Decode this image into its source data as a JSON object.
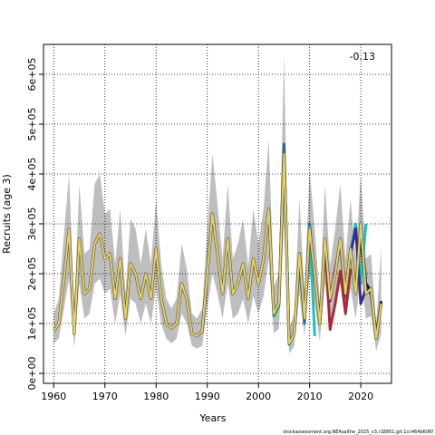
{
  "chart_data": {
    "type": "line",
    "title": "",
    "xlabel": "Years",
    "ylabel": "Recruits (age 3)",
    "xlim": [
      1958,
      2026
    ],
    "ylim": [
      -20000,
      660000
    ],
    "x_ticks": [
      1960,
      1970,
      1980,
      1990,
      2000,
      2010,
      2020
    ],
    "x_tick_labels": [
      "1960",
      "1970",
      "1980",
      "1990",
      "2000",
      "2010",
      "2020"
    ],
    "y_ticks": [
      0,
      100000,
      200000,
      300000,
      400000,
      500000,
      600000
    ],
    "y_tick_labels": [
      "0e+00",
      "1e+05",
      "2e+05",
      "3e+05",
      "4e+05",
      "5e+05",
      "6e+05"
    ],
    "grid": true,
    "annotation": "-0.13",
    "footer": "stockassessment.org,NEAsalthe_2025_v3,r18851,git:1cc464b606f",
    "band_color": "#bebebe",
    "main_color": "#e6d25a",
    "main_stroke_color": "#555555",
    "x": [
      1960,
      1961,
      1962,
      1963,
      1964,
      1965,
      1966,
      1967,
      1968,
      1969,
      1970,
      1971,
      1972,
      1973,
      1974,
      1975,
      1976,
      1977,
      1978,
      1979,
      1980,
      1981,
      1982,
      1983,
      1984,
      1985,
      1986,
      1987,
      1988,
      1989,
      1990,
      1991,
      1992,
      1993,
      1994,
      1995,
      1996,
      1997,
      1998,
      1999,
      2000,
      2001,
      2002,
      2003,
      2004,
      2005,
      2006,
      2007,
      2008,
      2009,
      2010,
      2011,
      2012,
      2013,
      2014,
      2015,
      2016,
      2017,
      2018,
      2019,
      2020,
      2021,
      2022,
      2023,
      2024
    ],
    "estimate": [
      85000,
      100000,
      190000,
      290000,
      80000,
      270000,
      160000,
      170000,
      260000,
      280000,
      230000,
      240000,
      150000,
      230000,
      110000,
      220000,
      200000,
      150000,
      200000,
      150000,
      250000,
      150000,
      100000,
      90000,
      100000,
      180000,
      150000,
      80000,
      75000,
      85000,
      200000,
      320000,
      240000,
      160000,
      270000,
      160000,
      180000,
      220000,
      150000,
      230000,
      180000,
      230000,
      330000,
      120000,
      140000,
      440000,
      60000,
      80000,
      240000,
      110000,
      290000,
      200000,
      100000,
      270000,
      150000,
      200000,
      270000,
      160000,
      250000,
      160000,
      300000,
      160000,
      170000,
      70000,
      140000
    ],
    "ci_lower": [
      60000,
      70000,
      130000,
      190000,
      50000,
      180000,
      110000,
      120000,
      180000,
      190000,
      160000,
      170000,
      100000,
      160000,
      75000,
      150000,
      140000,
      100000,
      140000,
      100000,
      170000,
      100000,
      70000,
      60000,
      70000,
      120000,
      100000,
      55000,
      50000,
      55000,
      130000,
      200000,
      160000,
      110000,
      180000,
      110000,
      120000,
      150000,
      100000,
      155000,
      120000,
      155000,
      230000,
      80000,
      90000,
      300000,
      40000,
      55000,
      160000,
      75000,
      200000,
      140000,
      65000,
      180000,
      100000,
      135000,
      180000,
      110000,
      170000,
      110000,
      200000,
      110000,
      115000,
      45000,
      80000
    ],
    "ci_upper": [
      120000,
      150000,
      280000,
      400000,
      130000,
      380000,
      240000,
      250000,
      380000,
      400000,
      320000,
      330000,
      220000,
      330000,
      160000,
      310000,
      290000,
      220000,
      290000,
      220000,
      350000,
      220000,
      150000,
      130000,
      150000,
      260000,
      210000,
      120000,
      110000,
      130000,
      290000,
      440000,
      340000,
      230000,
      380000,
      230000,
      260000,
      310000,
      215000,
      330000,
      260000,
      330000,
      470000,
      175000,
      200000,
      640000,
      90000,
      120000,
      350000,
      160000,
      410000,
      290000,
      145000,
      380000,
      215000,
      290000,
      380000,
      230000,
      350000,
      230000,
      400000,
      230000,
      240000,
      100000,
      255000
    ],
    "series": [
      {
        "color": "#22aa88",
        "x": [
          2002,
          2003,
          2004,
          2005,
          2006,
          2007,
          2008,
          2009,
          2010
        ],
        "values": [
          330000,
          115000,
          135000,
          455000,
          58000,
          82000,
          225000,
          105000,
          265000
        ]
      },
      {
        "color": "#31688e",
        "x": [
          2003,
          2004,
          2005,
          2006,
          2007,
          2008,
          2009,
          2010,
          2011
        ],
        "values": [
          120000,
          140000,
          460000,
          60000,
          80000,
          230000,
          100000,
          300000,
          190000
        ]
      },
      {
        "color": "#20c0c0",
        "x": [
          2008,
          2009,
          2010,
          2011
        ],
        "values": [
          238000,
          112000,
          293000,
          75000
        ]
      },
      {
        "color": "#7b3294",
        "x": [
          2008,
          2009,
          2010,
          2011,
          2012,
          2013,
          2014
        ],
        "values": [
          242000,
          115000,
          286000,
          195000,
          105000,
          250000,
          155000
        ]
      },
      {
        "color": "#c51b7d",
        "x": [
          2009,
          2010,
          2011,
          2012,
          2013,
          2014,
          2015,
          2016,
          2017
        ],
        "values": [
          110000,
          280000,
          198000,
          100000,
          260000,
          145000,
          210000,
          260000,
          150000
        ]
      },
      {
        "color": "#a8293a",
        "x": [
          2013,
          2014,
          2015,
          2016,
          2017,
          2018
        ],
        "values": [
          265000,
          88000,
          140000,
          205000,
          120000,
          210000
        ]
      },
      {
        "color": "#31a354",
        "x": [
          2016,
          2017,
          2018,
          2019,
          2020,
          2021
        ],
        "values": [
          270000,
          160000,
          250000,
          160000,
          285000,
          190000
        ]
      },
      {
        "color": "#17becf",
        "x": [
          2017,
          2018,
          2019,
          2020,
          2021
        ],
        "values": [
          165000,
          245000,
          300000,
          180000,
          300000
        ]
      },
      {
        "color": "#3b2c8f",
        "x": [
          2018,
          2019,
          2020,
          2021,
          2022,
          2023
        ],
        "values": [
          240000,
          290000,
          140000,
          170000,
          160000,
          80000
        ]
      },
      {
        "color": "#1a1a4a",
        "x": [
          2020,
          2021,
          2022,
          2023,
          2024
        ],
        "values": [
          265000,
          180000,
          165000,
          75000,
          145000
        ]
      }
    ]
  }
}
